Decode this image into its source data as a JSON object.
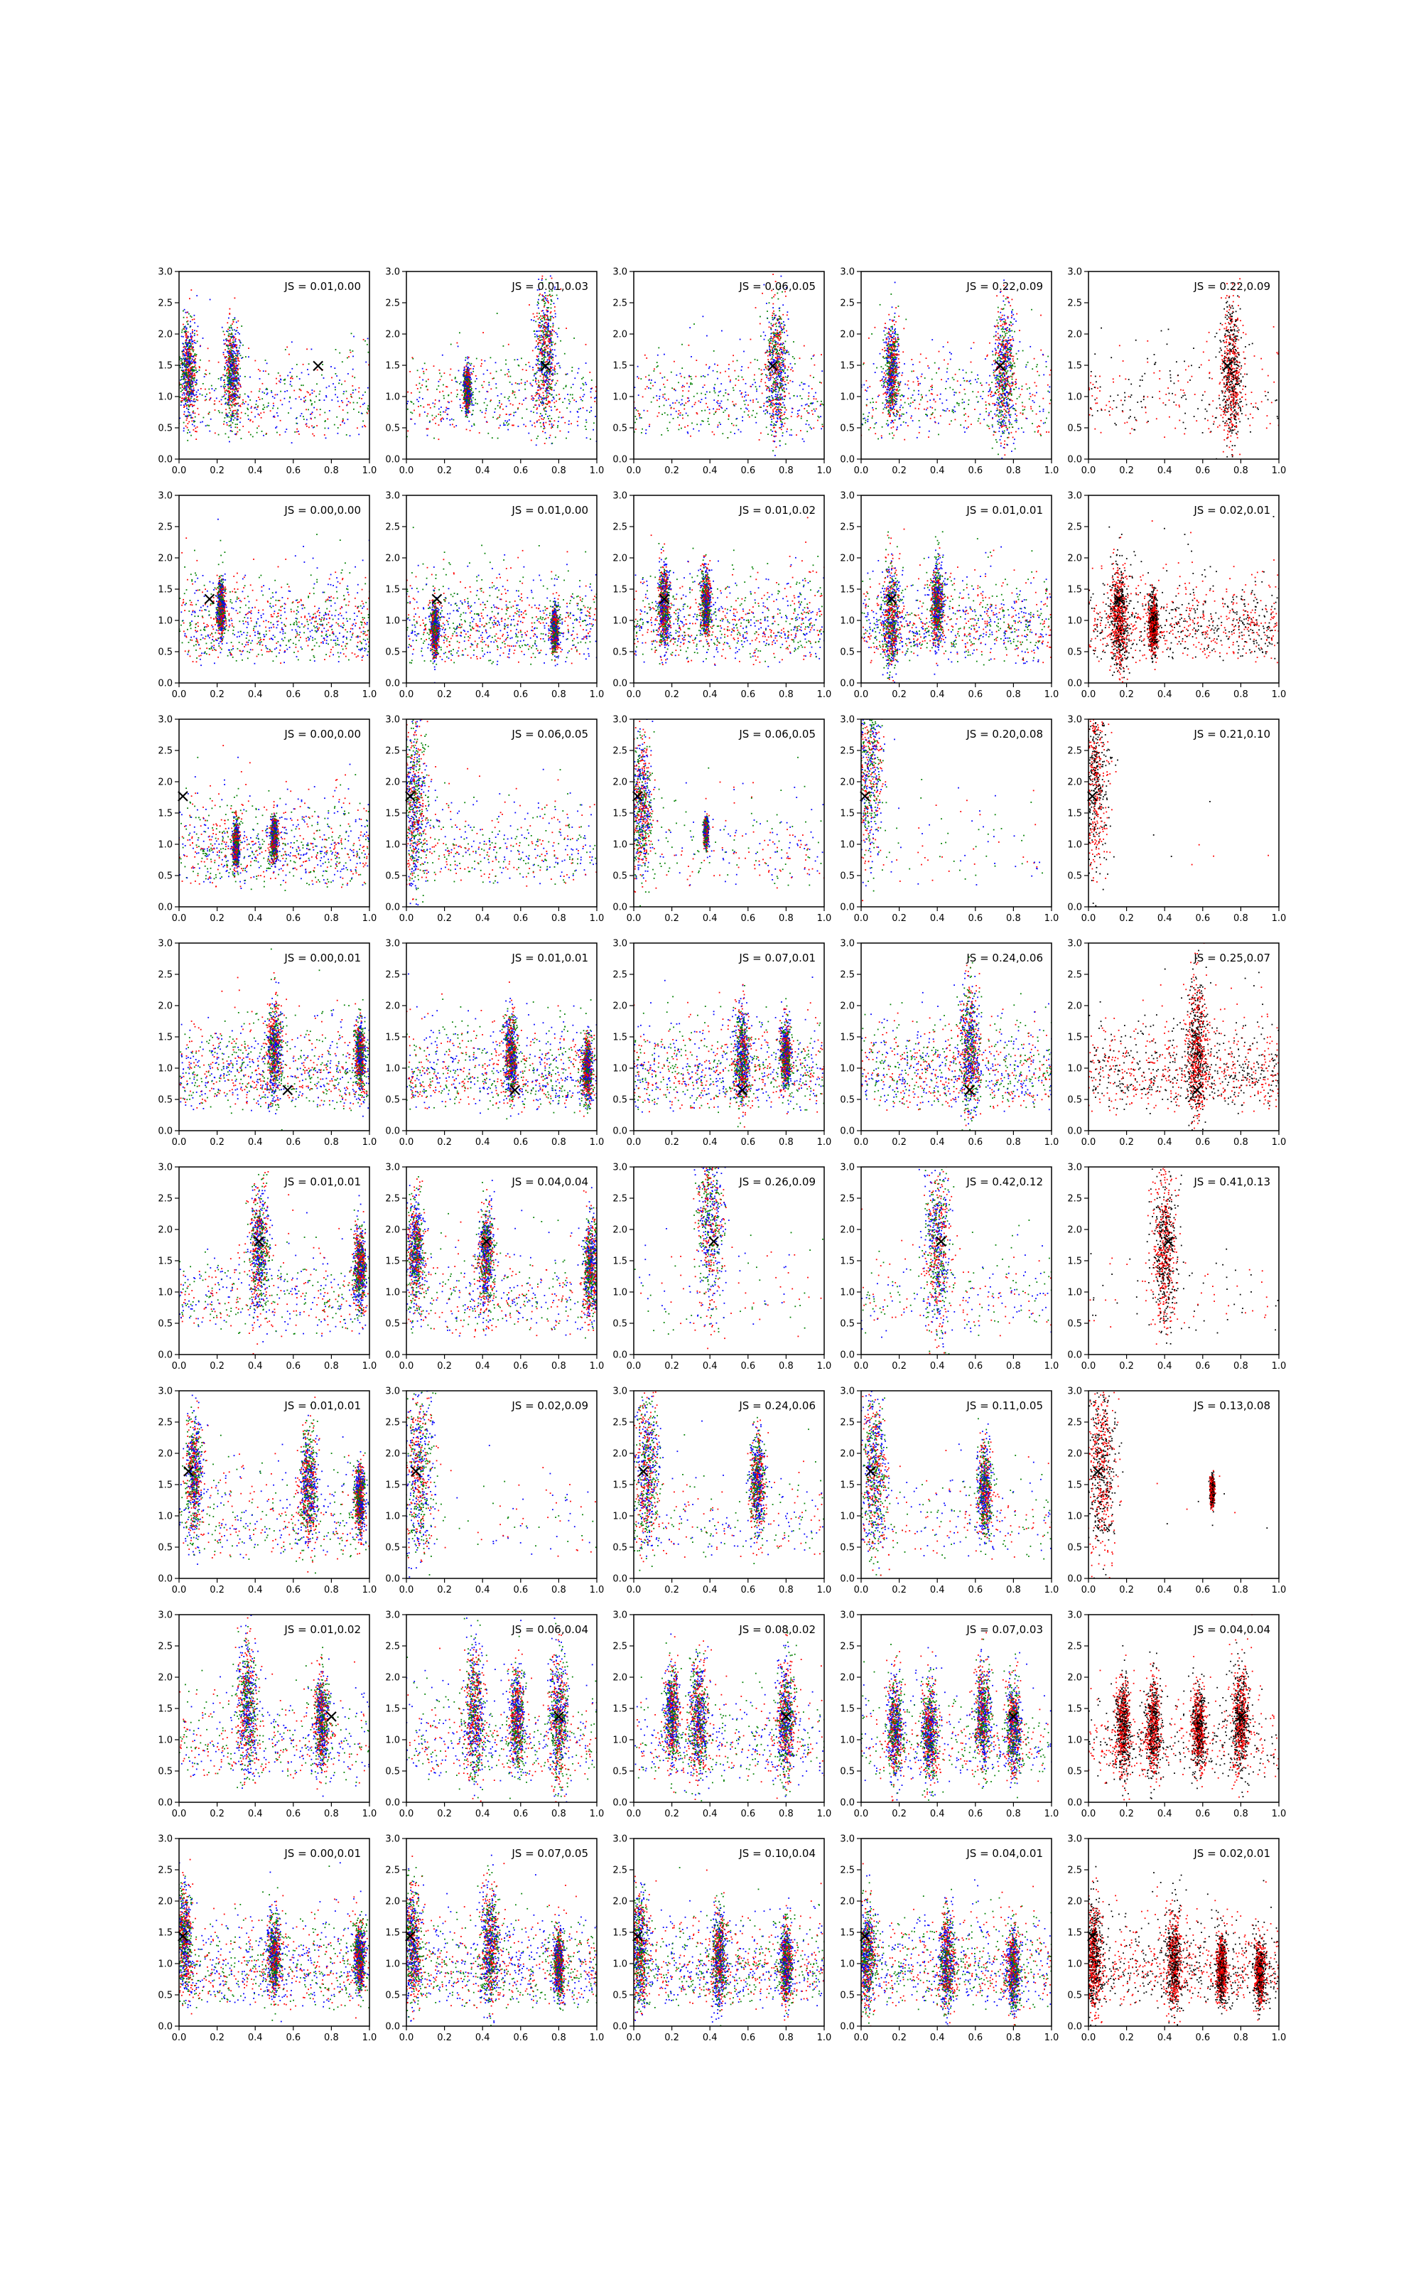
{
  "figure": {
    "rows": 8,
    "cols": 5,
    "colors": {
      "red": "#ff0000",
      "green": "#008000",
      "blue": "#0000ff",
      "black": "#000000",
      "axis": "#000000",
      "background": "#ffffff"
    }
  },
  "chart_data": {
    "type": "scatter",
    "xlim": [
      0.0,
      1.0
    ],
    "ylim": [
      0.0,
      3.0
    ],
    "xticks": [
      "0.0",
      "0.2",
      "0.4",
      "0.6",
      "0.8",
      "1.0"
    ],
    "yticks": [
      "0.0",
      "0.5",
      "1.0",
      "1.5",
      "2.0",
      "2.5",
      "3.0"
    ],
    "grid": false,
    "marker_label": "×",
    "rows": [
      {
        "marker": {
          "x": 0.73,
          "y": 1.5
        },
        "panels": [
          {
            "label": "JS = 0.01,0.00",
            "colors": [
              "blue",
              "green",
              "red"
            ],
            "clusters": [
              [
                0.05,
                1.45,
                0.18
              ],
              [
                0.28,
                1.4,
                0.18
              ]
            ],
            "spread": "wide"
          },
          {
            "label": "JS = 0.01,0.03",
            "colors": [
              "blue",
              "red",
              "green"
            ],
            "clusters": [
              [
                0.73,
                1.7,
                0.25
              ],
              [
                0.32,
                1.1,
                0.08
              ]
            ],
            "spread": "wide"
          },
          {
            "label": "JS = 0.06,0.05",
            "colors": [
              "green",
              "blue",
              "red"
            ],
            "clusters": [
              [
                0.75,
                1.45,
                0.25
              ]
            ],
            "spread": "wide"
          },
          {
            "label": "JS = 0.22,0.09",
            "colors": [
              "green",
              "blue",
              "red"
            ],
            "clusters": [
              [
                0.16,
                1.4,
                0.18
              ],
              [
                0.75,
                1.4,
                0.25
              ]
            ],
            "spread": "wide"
          },
          {
            "label": "JS = 0.22,0.09",
            "colors": [
              "black",
              "red"
            ],
            "clusters": [
              [
                0.75,
                1.4,
                0.25
              ]
            ],
            "spread": "medium"
          }
        ]
      },
      {
        "marker": {
          "x": 0.16,
          "y": 1.35
        },
        "panels": [
          {
            "label": "JS = 0.00,0.00",
            "colors": [
              "blue",
              "green",
              "red"
            ],
            "clusters": [
              [
                0.22,
                1.2,
                0.1
              ]
            ],
            "spread": "full"
          },
          {
            "label": "JS = 0.01,0.00",
            "colors": [
              "blue",
              "green",
              "red"
            ],
            "clusters": [
              [
                0.15,
                0.85,
                0.1
              ],
              [
                0.78,
                0.85,
                0.08
              ]
            ],
            "spread": "full"
          },
          {
            "label": "JS = 0.01,0.02",
            "colors": [
              "blue",
              "green",
              "red"
            ],
            "clusters": [
              [
                0.16,
                1.25,
                0.15
              ],
              [
                0.38,
                1.3,
                0.12
              ]
            ],
            "spread": "full"
          },
          {
            "label": "JS = 0.01,0.01",
            "colors": [
              "blue",
              "green",
              "red"
            ],
            "clusters": [
              [
                0.16,
                1.0,
                0.2
              ],
              [
                0.4,
                1.3,
                0.15
              ]
            ],
            "spread": "full"
          },
          {
            "label": "JS = 0.02,0.01",
            "colors": [
              "black",
              "red"
            ],
            "clusters": [
              [
                0.16,
                1.0,
                0.2
              ],
              [
                0.34,
                0.95,
                0.1
              ]
            ],
            "spread": "full"
          }
        ]
      },
      {
        "marker": {
          "x": 0.02,
          "y": 1.78
        },
        "panels": [
          {
            "label": "JS = 0.00,0.00",
            "colors": [
              "blue",
              "green",
              "red"
            ],
            "clusters": [
              [
                0.3,
                1.0,
                0.08
              ],
              [
                0.5,
                1.1,
                0.08
              ]
            ],
            "spread": "full"
          },
          {
            "label": "JS = 0.06,0.05",
            "colors": [
              "blue",
              "green",
              "red"
            ],
            "clusters": [
              [
                0.04,
                1.7,
                0.3
              ]
            ],
            "spread": "wide"
          },
          {
            "label": "JS = 0.06,0.05",
            "colors": [
              "blue",
              "green",
              "red"
            ],
            "clusters": [
              [
                0.04,
                1.6,
                0.25
              ],
              [
                0.38,
                1.2,
                0.05
              ]
            ],
            "spread": "medium"
          },
          {
            "label": "JS = 0.20,0.08",
            "colors": [
              "blue",
              "green",
              "red"
            ],
            "clusters": [
              [
                0.04,
                2.2,
                0.35
              ]
            ],
            "spread": "sparse"
          },
          {
            "label": "JS = 0.21,0.10",
            "colors": [
              "black",
              "red"
            ],
            "clusters": [
              [
                0.03,
                2.1,
                0.35
              ]
            ],
            "spread": "none"
          }
        ]
      },
      {
        "marker": {
          "x": 0.57,
          "y": 0.66
        },
        "panels": [
          {
            "label": "JS = 0.00,0.01",
            "colors": [
              "blue",
              "green",
              "red"
            ],
            "clusters": [
              [
                0.5,
                1.3,
                0.18
              ],
              [
                0.95,
                1.2,
                0.12
              ]
            ],
            "spread": "full"
          },
          {
            "label": "JS = 0.01,0.01",
            "colors": [
              "blue",
              "green",
              "red"
            ],
            "clusters": [
              [
                0.55,
                1.2,
                0.15
              ],
              [
                0.95,
                1.0,
                0.12
              ]
            ],
            "spread": "full"
          },
          {
            "label": "JS = 0.07,0.01",
            "colors": [
              "green",
              "blue",
              "red"
            ],
            "clusters": [
              [
                0.57,
                1.2,
                0.18
              ],
              [
                0.8,
                1.2,
                0.12
              ]
            ],
            "spread": "full"
          },
          {
            "label": "JS = 0.24,0.06",
            "colors": [
              "green",
              "blue",
              "red"
            ],
            "clusters": [
              [
                0.57,
                1.3,
                0.25
              ]
            ],
            "spread": "full"
          },
          {
            "label": "JS = 0.25,0.07",
            "colors": [
              "black",
              "red"
            ],
            "clusters": [
              [
                0.57,
                1.3,
                0.25
              ]
            ],
            "spread": "full"
          }
        ]
      },
      {
        "marker": {
          "x": 0.42,
          "y": 1.82
        },
        "panels": [
          {
            "label": "JS = 0.01,0.01",
            "colors": [
              "blue",
              "green",
              "red"
            ],
            "clusters": [
              [
                0.42,
                1.7,
                0.22
              ],
              [
                0.95,
                1.4,
                0.15
              ]
            ],
            "spread": "wide"
          },
          {
            "label": "JS = 0.04,0.04",
            "colors": [
              "blue",
              "green",
              "red"
            ],
            "clusters": [
              [
                0.05,
                1.7,
                0.2
              ],
              [
                0.42,
                1.6,
                0.18
              ],
              [
                0.97,
                1.4,
                0.18
              ]
            ],
            "spread": "wide"
          },
          {
            "label": "JS = 0.26,0.09",
            "colors": [
              "blue",
              "green",
              "red"
            ],
            "clusters": [
              [
                0.4,
                2.2,
                0.35
              ]
            ],
            "spread": "sparse"
          },
          {
            "label": "JS = 0.42,0.12",
            "colors": [
              "green",
              "blue",
              "red"
            ],
            "clusters": [
              [
                0.4,
                1.7,
                0.3
              ]
            ],
            "spread": "medium"
          },
          {
            "label": "JS = 0.41,0.13",
            "colors": [
              "black",
              "red"
            ],
            "clusters": [
              [
                0.4,
                1.7,
                0.3
              ]
            ],
            "spread": "sparse"
          }
        ]
      },
      {
        "marker": {
          "x": 0.05,
          "y": 1.72
        },
        "panels": [
          {
            "label": "JS = 0.01,0.01",
            "colors": [
              "blue",
              "green",
              "red"
            ],
            "clusters": [
              [
                0.08,
                1.7,
                0.2
              ],
              [
                0.68,
                1.5,
                0.2
              ],
              [
                0.95,
                1.3,
                0.12
              ]
            ],
            "spread": "wide"
          },
          {
            "label": "JS = 0.02,0.09",
            "colors": [
              "blue",
              "green",
              "red"
            ],
            "clusters": [
              [
                0.07,
                1.7,
                0.35
              ]
            ],
            "spread": "sparse"
          },
          {
            "label": "JS = 0.24,0.06",
            "colors": [
              "blue",
              "green",
              "red"
            ],
            "clusters": [
              [
                0.07,
                1.7,
                0.3
              ],
              [
                0.65,
                1.5,
                0.18
              ]
            ],
            "spread": "medium"
          },
          {
            "label": "JS = 0.11,0.05",
            "colors": [
              "green",
              "blue",
              "red"
            ],
            "clusters": [
              [
                0.07,
                1.7,
                0.3
              ],
              [
                0.65,
                1.4,
                0.18
              ]
            ],
            "spread": "medium"
          },
          {
            "label": "JS = 0.13,0.08",
            "colors": [
              "black",
              "red"
            ],
            "clusters": [
              [
                0.07,
                1.8,
                0.35
              ],
              [
                0.65,
                1.4,
                0.05
              ]
            ],
            "spread": "none"
          }
        ]
      },
      {
        "marker": {
          "x": 0.8,
          "y": 1.38
        },
        "panels": [
          {
            "label": "JS = 0.01,0.02",
            "colors": [
              "blue",
              "red",
              "green"
            ],
            "clusters": [
              [
                0.36,
                1.5,
                0.25
              ],
              [
                0.75,
                1.3,
                0.18
              ]
            ],
            "spread": "wide"
          },
          {
            "label": "JS = 0.06,0.04",
            "colors": [
              "blue",
              "green",
              "red"
            ],
            "clusters": [
              [
                0.36,
                1.4,
                0.25
              ],
              [
                0.58,
                1.3,
                0.18
              ],
              [
                0.8,
                1.3,
                0.22
              ]
            ],
            "spread": "wide"
          },
          {
            "label": "JS = 0.08,0.02",
            "colors": [
              "blue",
              "green",
              "red"
            ],
            "clusters": [
              [
                0.2,
                1.4,
                0.18
              ],
              [
                0.34,
                1.3,
                0.22
              ],
              [
                0.8,
                1.3,
                0.22
              ]
            ],
            "spread": "wide"
          },
          {
            "label": "JS = 0.07,0.03",
            "colors": [
              "blue",
              "green",
              "red"
            ],
            "clusters": [
              [
                0.18,
                1.2,
                0.18
              ],
              [
                0.36,
                1.1,
                0.18
              ],
              [
                0.64,
                1.4,
                0.18
              ],
              [
                0.8,
                1.2,
                0.18
              ]
            ],
            "spread": "wide"
          },
          {
            "label": "JS = 0.04,0.04",
            "colors": [
              "black",
              "red"
            ],
            "clusters": [
              [
                0.18,
                1.2,
                0.18
              ],
              [
                0.34,
                1.2,
                0.18
              ],
              [
                0.58,
                1.2,
                0.15
              ],
              [
                0.8,
                1.3,
                0.2
              ]
            ],
            "spread": "wide"
          }
        ]
      },
      {
        "marker": {
          "x": 0.02,
          "y": 1.45
        },
        "panels": [
          {
            "label": "JS = 0.00,0.01",
            "colors": [
              "blue",
              "green",
              "red"
            ],
            "clusters": [
              [
                0.03,
                1.4,
                0.18
              ],
              [
                0.5,
                1.1,
                0.15
              ],
              [
                0.95,
                1.1,
                0.12
              ]
            ],
            "spread": "full"
          },
          {
            "label": "JS = 0.07,0.05",
            "colors": [
              "blue",
              "green",
              "red"
            ],
            "clusters": [
              [
                0.03,
                1.3,
                0.22
              ],
              [
                0.44,
                1.3,
                0.22
              ],
              [
                0.8,
                1.0,
                0.12
              ]
            ],
            "spread": "full"
          },
          {
            "label": "JS = 0.10,0.04",
            "colors": [
              "blue",
              "green",
              "red"
            ],
            "clusters": [
              [
                0.03,
                1.2,
                0.22
              ],
              [
                0.45,
                1.1,
                0.18
              ],
              [
                0.8,
                1.0,
                0.15
              ]
            ],
            "spread": "full"
          },
          {
            "label": "JS = 0.04,0.01",
            "colors": [
              "green",
              "blue",
              "red"
            ],
            "clusters": [
              [
                0.03,
                1.1,
                0.2
              ],
              [
                0.45,
                1.0,
                0.18
              ],
              [
                0.8,
                0.9,
                0.15
              ]
            ],
            "spread": "full"
          },
          {
            "label": "JS = 0.02,0.01",
            "colors": [
              "black",
              "red"
            ],
            "clusters": [
              [
                0.03,
                1.1,
                0.2
              ],
              [
                0.45,
                1.0,
                0.18
              ],
              [
                0.7,
                0.9,
                0.12
              ],
              [
                0.9,
                0.85,
                0.12
              ]
            ],
            "spread": "full"
          }
        ]
      }
    ]
  }
}
